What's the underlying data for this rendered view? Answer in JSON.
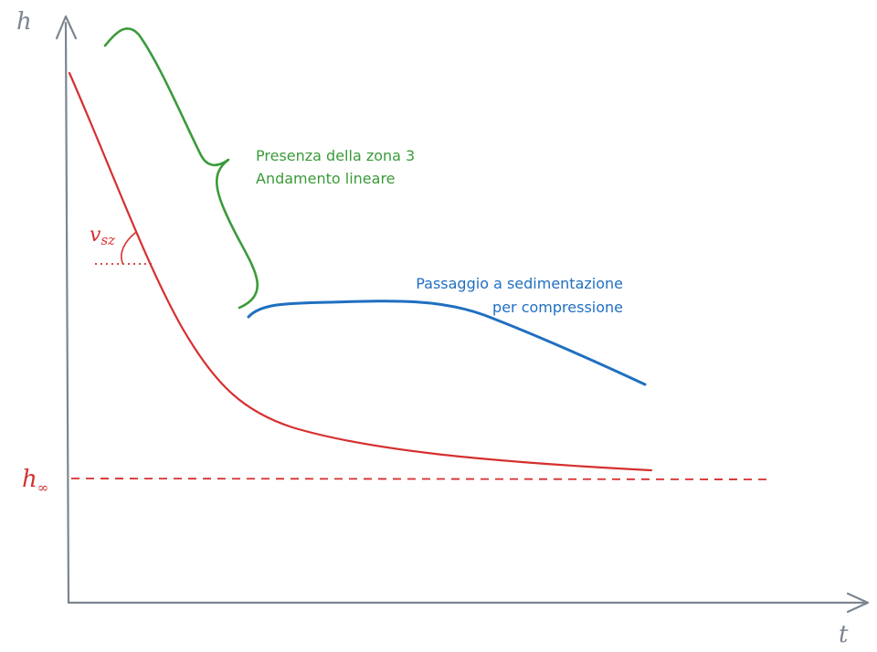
{
  "colors": {
    "axis": "#7b8591",
    "curve": "#d62f2f",
    "green": "#3a9b3a",
    "blue": "#1f6fc0"
  },
  "axes": {
    "y_label": "h",
    "x_label": "t"
  },
  "slope_label": {
    "main": "v",
    "sub": "sz"
  },
  "asymptote_label": {
    "main": "h",
    "sub": "∞"
  },
  "green_note": {
    "line1": "Presenza della zona 3",
    "line2": "Andamento lineare"
  },
  "blue_note": {
    "line1": "Passaggio a sedimentazione",
    "line2": "per compressione"
  }
}
